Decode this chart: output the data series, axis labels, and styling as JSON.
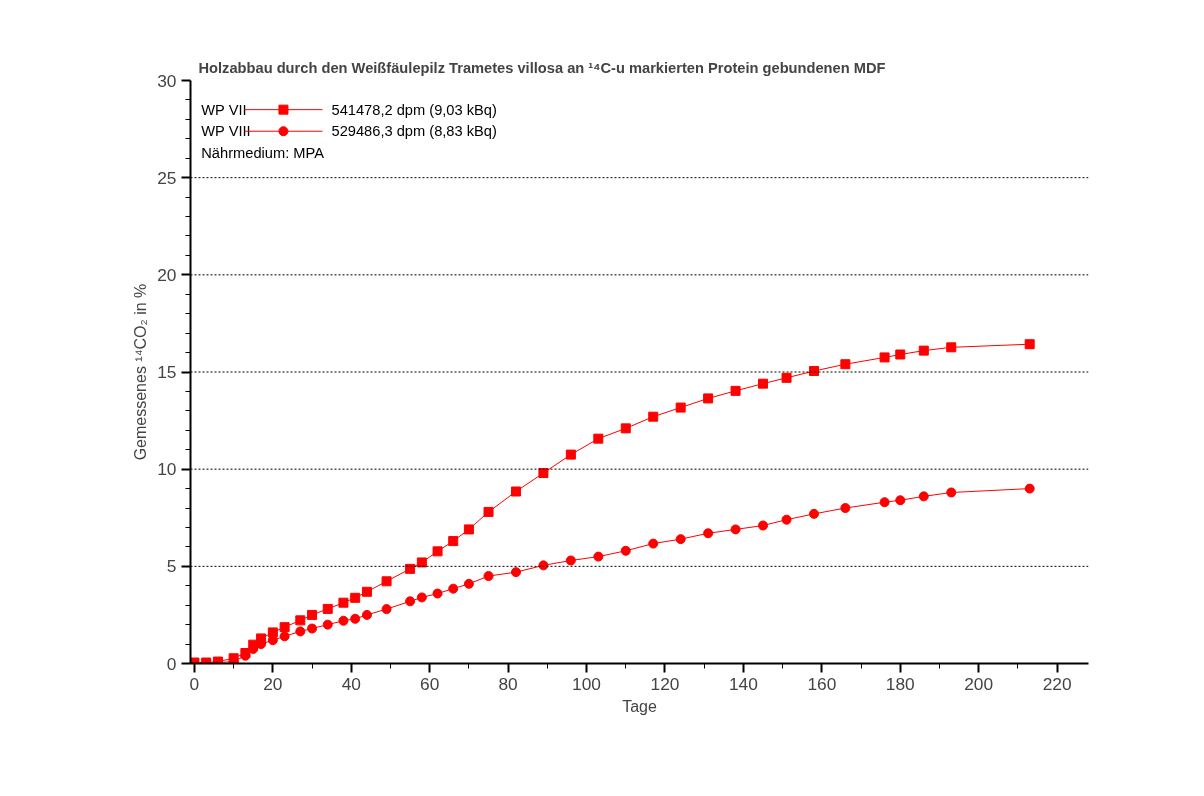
{
  "chart_data": {
    "type": "line",
    "title": "Holzabbau durch den Weißfäulepilz Trametes villosa an ¹⁴C-u markierten Protein gebundenen MDF",
    "xlabel": "Tage",
    "ylabel": "Gemessenes ¹⁴CO₂ in %",
    "xlim": [
      -1,
      228
    ],
    "ylim": [
      0,
      30
    ],
    "xticks": [
      0,
      20,
      40,
      60,
      80,
      100,
      120,
      140,
      160,
      180,
      200,
      220
    ],
    "yticks": [
      0,
      5,
      10,
      15,
      20,
      25,
      30
    ],
    "grid": "y",
    "legend": "top left",
    "line_style": "solid",
    "annotations": [
      "541478,2 dpm (9,03 kBq)",
      "529486,3 dpm (8,83 kBq)",
      "Nährmedium: MPA"
    ],
    "series": [
      {
        "name": "WP VII",
        "color": "#ff0000",
        "marker": "square",
        "x": [
          0,
          3,
          6,
          10,
          13,
          15,
          17,
          20,
          23,
          27,
          30,
          34,
          38,
          41,
          44,
          49,
          55,
          58,
          62,
          66,
          70,
          75,
          82,
          89,
          96,
          103,
          110,
          117,
          124,
          131,
          138,
          145,
          151,
          158,
          166,
          176,
          180,
          186,
          193,
          213
        ],
        "values": [
          0.05,
          0.05,
          0.1,
          0.27,
          0.54,
          0.97,
          1.29,
          1.6,
          1.87,
          2.22,
          2.5,
          2.81,
          3.13,
          3.38,
          3.69,
          4.23,
          4.87,
          5.2,
          5.77,
          6.3,
          6.9,
          7.8,
          8.85,
          9.8,
          10.75,
          11.57,
          12.1,
          12.7,
          13.17,
          13.64,
          14.03,
          14.4,
          14.7,
          15.05,
          15.4,
          15.75,
          15.9,
          16.1,
          16.27,
          16.43
        ]
      },
      {
        "name": "WP VIII",
        "color": "#ff0000",
        "marker": "circle",
        "x": [
          0,
          3,
          6,
          10,
          13,
          15,
          17,
          20,
          23,
          27,
          30,
          34,
          38,
          41,
          44,
          49,
          55,
          58,
          62,
          66,
          70,
          75,
          82,
          89,
          96,
          103,
          110,
          117,
          124,
          131,
          138,
          145,
          151,
          158,
          166,
          176,
          180,
          186,
          193,
          213
        ],
        "values": [
          0.0,
          0.0,
          0.05,
          0.1,
          0.4,
          0.75,
          1.0,
          1.2,
          1.4,
          1.65,
          1.8,
          2.0,
          2.2,
          2.3,
          2.5,
          2.8,
          3.2,
          3.4,
          3.6,
          3.85,
          4.1,
          4.5,
          4.7,
          5.05,
          5.3,
          5.5,
          5.8,
          6.17,
          6.4,
          6.7,
          6.9,
          7.1,
          7.4,
          7.7,
          8.0,
          8.3,
          8.4,
          8.6,
          8.8,
          9.0
        ]
      }
    ]
  }
}
